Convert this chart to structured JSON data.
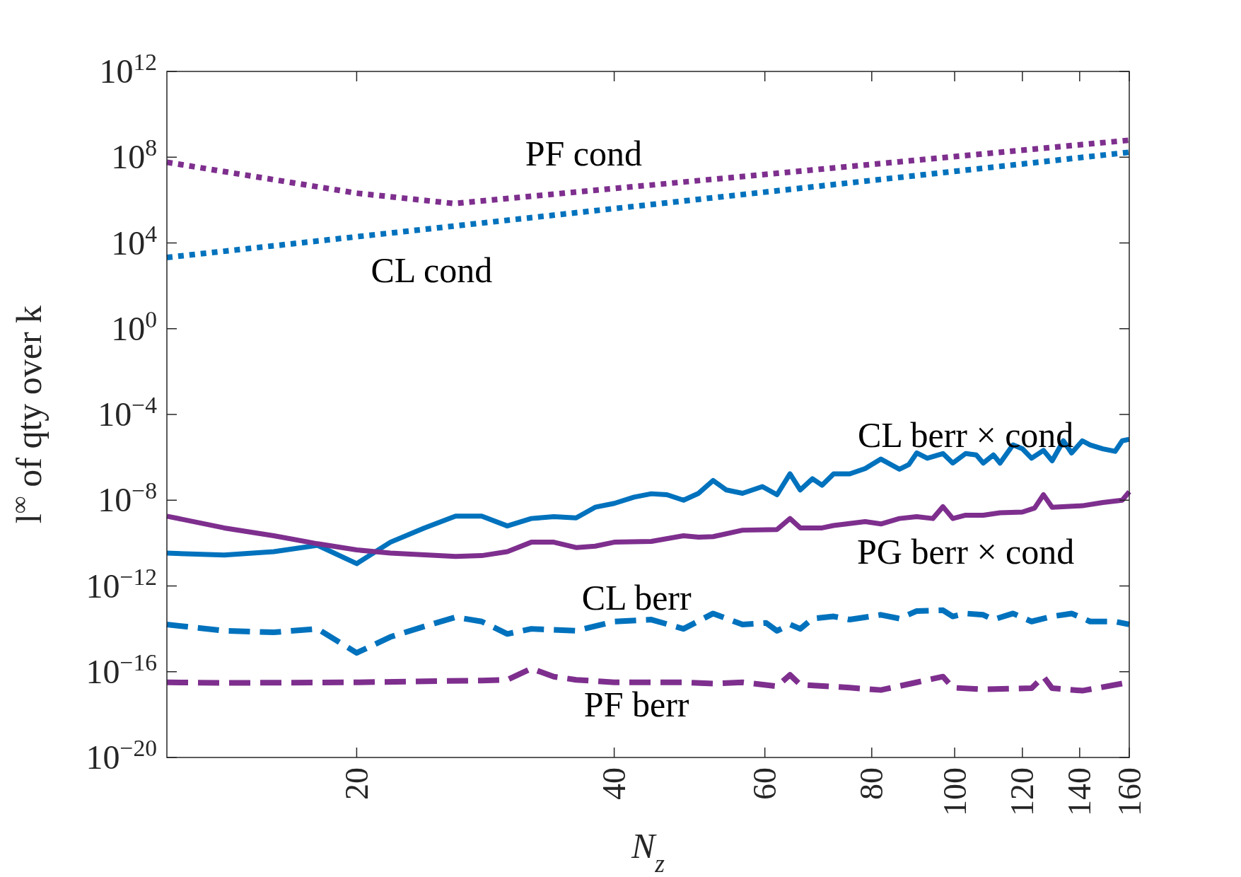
{
  "chart_data": {
    "type": "line",
    "xlabel": "N$_{z}$",
    "ylabel": "l$^{∞}$ of qty over k",
    "log": "xy",
    "grid": false,
    "xlim": [
      12,
      160
    ],
    "xticks": [
      20,
      40,
      60,
      80,
      100,
      120,
      140,
      160
    ],
    "ylim": [
      1e-20,
      1000000000000.0
    ],
    "yticks": [
      {
        "value": 1e-20,
        "label": "10$^{−20}$"
      },
      {
        "value": 1e-16,
        "label": "10$^{−16}$"
      },
      {
        "value": 1e-12,
        "label": "10$^{−12}$"
      },
      {
        "value": 1e-08,
        "label": "10$^{−8}$"
      },
      {
        "value": 0.0001,
        "label": "10$^{−4}$"
      },
      {
        "value": 1,
        "label": "10$^{0}$"
      },
      {
        "value": 10000,
        "label": "10$^{4}$"
      },
      {
        "value": 100000000,
        "label": "10$^{8}$"
      },
      {
        "value": 1000000000000,
        "label": "10$^{12}$"
      }
    ],
    "series": [
      {
        "name": "PF cond",
        "color": "#7e2f8e",
        "line_style": "dotted",
        "x": [
          12,
          20,
          26,
          160
        ],
        "values": [
          58000000.0,
          2100000.0,
          690000.0,
          620000000.0
        ]
      },
      {
        "name": "CL cond",
        "color": "#0072bd",
        "line_style": "dotted",
        "x": [
          12,
          160
        ],
        "values": [
          2100.0,
          170000000.0
        ]
      },
      {
        "name": "CL berr × cond",
        "color": "#0072bd",
        "line_style": "solid",
        "x": [
          12,
          14,
          16,
          18,
          20,
          21.9,
          24,
          26.1,
          28,
          30,
          32,
          34,
          36.1,
          38,
          40,
          42.2,
          44.2,
          46.1,
          48.2,
          50.2,
          52.2,
          54.1,
          56.5,
          59.6,
          62,
          64.2,
          66,
          68.2,
          70,
          72.2,
          75.4,
          78.6,
          82,
          86.2,
          88.4,
          90.3,
          92.9,
          96.9,
          99.5,
          103,
          106,
          108,
          111,
          113,
          117,
          120,
          123,
          127,
          130,
          134,
          137,
          141,
          144,
          149,
          154,
          157,
          160
        ],
        "values": [
          3.4e-11,
          2.8e-11,
          4e-11,
          7.9e-11,
          1.1e-11,
          1.1e-10,
          5.1e-10,
          1.8e-09,
          1.8e-09,
          6.3e-10,
          1.4e-09,
          1.7e-09,
          1.5e-09,
          4.7e-09,
          7.1e-09,
          1.4e-08,
          2e-08,
          1.8e-08,
          1e-08,
          2.1e-08,
          8.3e-08,
          3e-08,
          2.1e-08,
          4.3e-08,
          1.8e-08,
          1.7e-07,
          3e-08,
          1e-07,
          5e-08,
          1.7e-07,
          1.7e-07,
          3e-07,
          8.3e-07,
          2.8e-07,
          4.6e-07,
          1.6e-06,
          9.1e-07,
          1.5e-06,
          5.4e-07,
          1.5e-06,
          1.3e-06,
          5.4e-07,
          1.3e-06,
          5.4e-07,
          3.8e-06,
          2.5e-06,
          9.1e-07,
          2.1e-06,
          6.9e-07,
          5.9e-06,
          1.6e-06,
          5.9e-06,
          3.8e-06,
          2.5e-06,
          1.9e-06,
          5.9e-06,
          6.9e-06
        ]
      },
      {
        "name": "PG berr × cond",
        "color": "#7e2f8e",
        "line_style": "solid",
        "x": [
          12,
          14,
          16,
          18,
          20,
          21.9,
          26.1,
          28,
          30,
          32,
          34,
          36.1,
          38,
          40,
          44.2,
          48.2,
          50.2,
          52.2,
          56.5,
          62,
          64.2,
          66,
          70,
          72.2,
          78.6,
          82,
          86.2,
          90.3,
          94.3,
          96.9,
          99.5,
          103,
          108,
          113,
          120,
          124,
          127,
          130,
          141,
          149,
          157,
          160
        ],
        "values": [
          1.8e-09,
          5.1e-10,
          2.2e-10,
          9.3e-11,
          4.8e-11,
          3.4e-11,
          2.4e-11,
          2.6e-11,
          4e-11,
          1.1e-10,
          1.1e-10,
          6.2e-11,
          7.2e-11,
          1.1e-10,
          1.2e-10,
          2.2e-10,
          1.9e-10,
          2e-10,
          4e-10,
          4.3e-10,
          1.4e-09,
          5.1e-10,
          5.1e-10,
          6.6e-10,
          1e-09,
          7.8e-10,
          1.4e-09,
          1.7e-09,
          1.4e-09,
          5e-09,
          1.4e-09,
          2e-09,
          2e-09,
          2.6e-09,
          2.8e-09,
          4.3e-09,
          1.8e-08,
          4.7e-09,
          5.5e-09,
          7.8e-09,
          1e-08,
          2.5e-08
        ]
      },
      {
        "name": "CL berr",
        "color": "#0072bd",
        "line_style": "dashed",
        "x": [
          12,
          14,
          16,
          18,
          20,
          21.9,
          24,
          26.1,
          28,
          30,
          32,
          36.1,
          40,
          44.2,
          48.2,
          52.2,
          56.5,
          60.2,
          62,
          64.2,
          66,
          68.2,
          72.2,
          75.4,
          82,
          86.2,
          90.3,
          96.9,
          99.5,
          103,
          108,
          111,
          117,
          123,
          130,
          137,
          144,
          154,
          160
        ],
        "values": [
          1.6e-14,
          8.1e-15,
          6.9e-15,
          1e-14,
          7.6e-16,
          4.2e-15,
          1.3e-14,
          3.5e-14,
          2.2e-14,
          5.8e-15,
          1e-14,
          8.1e-15,
          2.2e-14,
          2.7e-14,
          1e-14,
          5.2e-14,
          1.6e-14,
          1.9e-14,
          8.1e-15,
          1.6e-14,
          1e-14,
          3e-14,
          3.8e-14,
          2.7e-14,
          4.5e-14,
          3e-14,
          6.8e-14,
          7.4e-14,
          3.8e-14,
          5.2e-14,
          4.5e-14,
          2.7e-14,
          5.2e-14,
          2.2e-14,
          3.8e-14,
          5.2e-14,
          2.2e-14,
          2.2e-14,
          1.6e-14
        ]
      },
      {
        "name": "PF berr",
        "color": "#7e2f8e",
        "line_style": "dashed",
        "x": [
          12,
          14,
          20,
          28,
          30,
          32,
          34,
          36.1,
          40,
          44.2,
          48.2,
          52.2,
          56.5,
          62,
          64.2,
          66,
          75.4,
          82,
          90.3,
          96.9,
          99.5,
          108,
          123,
          127,
          130,
          141,
          160
        ],
        "values": [
          3.2e-17,
          3e-17,
          3.2e-17,
          3.9e-17,
          4.2e-17,
          1.4e-16,
          5.9e-17,
          4.2e-17,
          3.2e-17,
          3.2e-17,
          3.2e-17,
          2.8e-17,
          3.2e-17,
          2.1e-17,
          7.1e-17,
          2.5e-17,
          1.8e-17,
          1.4e-17,
          3.2e-17,
          5.9e-17,
          1.8e-17,
          1.5e-17,
          1.7e-17,
          5.9e-17,
          1.7e-17,
          1.3e-17,
          3.2e-17
        ]
      }
    ]
  }
}
